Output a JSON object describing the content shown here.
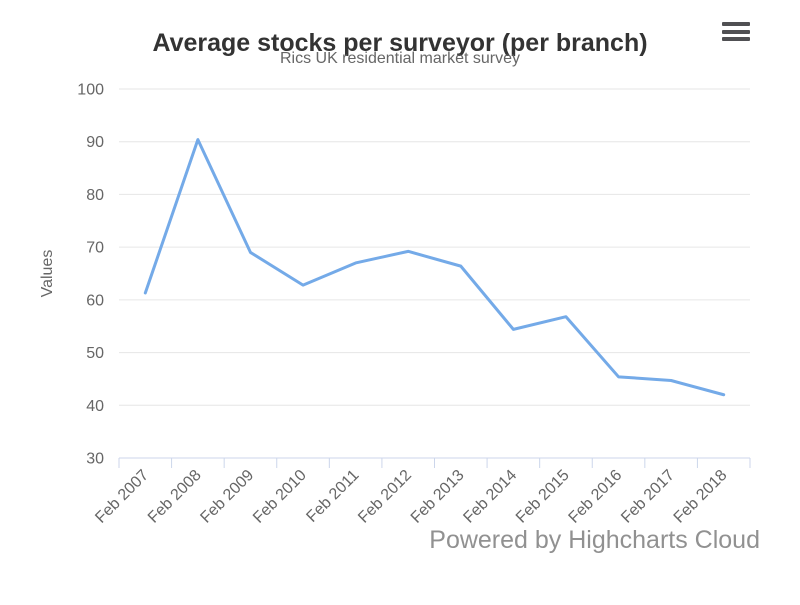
{
  "header": {
    "title": "Average stocks per surveyor (per branch)",
    "subtitle": "Rics UK residential market survey"
  },
  "context_menu": {
    "icon": "hamburger-menu-icon",
    "bar_count": 3
  },
  "credits": {
    "text": "Powered by Highcharts Cloud"
  },
  "colors": {
    "series_line": "#74aae8",
    "grid_line": "#e6e6e6",
    "axis_line": "#ccd6eb",
    "axis_text": "#666666",
    "title_text": "#333333",
    "subtitle_text": "#666666",
    "credits_text": "#919191",
    "menu_icon": "#505053",
    "background": "#ffffff"
  },
  "chart_data": {
    "type": "line",
    "title": "Average stocks per surveyor (per branch)",
    "subtitle": "Rics UK residential market survey",
    "categories": [
      "Feb 2007",
      "Feb 2008",
      "Feb 2009",
      "Feb 2010",
      "Feb 2011",
      "Feb 2012",
      "Feb 2013",
      "Feb 2014",
      "Feb 2015",
      "Feb 2016",
      "Feb 2017",
      "Feb 2018"
    ],
    "series": [
      {
        "name": "Values",
        "values": [
          61.3,
          90.4,
          69.0,
          62.8,
          67.0,
          69.2,
          66.4,
          54.4,
          56.8,
          45.4,
          44.7,
          42.0
        ]
      }
    ],
    "xlabel": "",
    "ylabel": "Values",
    "ylim": [
      30,
      100
    ],
    "ytick_interval": 10,
    "yticks": [
      30,
      40,
      50,
      60,
      70,
      80,
      90,
      100
    ],
    "grid": true,
    "legend": false,
    "x_label_rotation": -45
  }
}
